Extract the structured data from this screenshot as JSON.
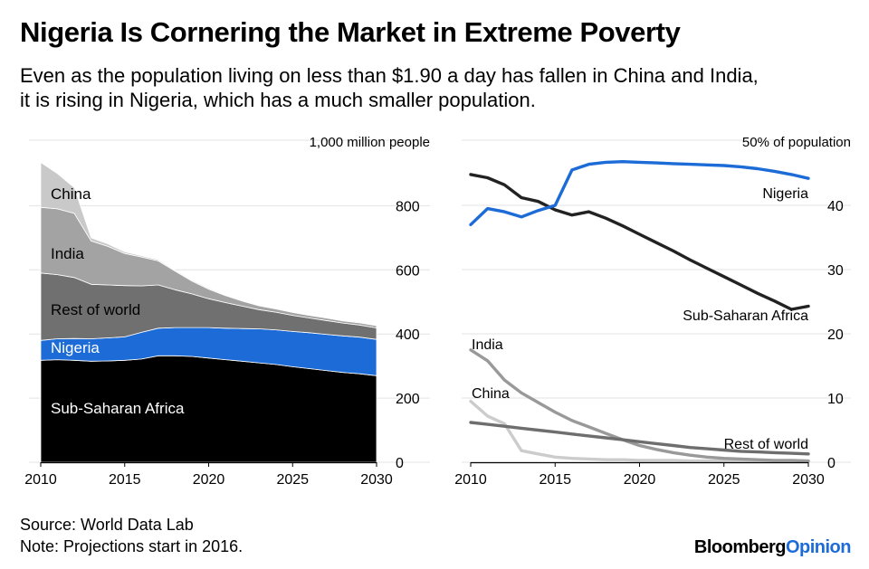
{
  "header": {
    "title": "Nigeria Is Cornering the Market in Extreme Poverty",
    "subtitle_line1": "Even as the population living on less than $1.90 a day has fallen in China and India,",
    "subtitle_line2": "it is rising in Nigeria, which has a much smaller population."
  },
  "footer": {
    "source": "Source: World Data Lab",
    "note": "Note: Projections start in 2016.",
    "brand_main": "Bloomberg",
    "brand_accent": "Opinion"
  },
  "colors": {
    "china": "#c9c9c9",
    "india": "#a3a3a3",
    "rest_of_world": "#707070",
    "nigeria": "#1c6bd7",
    "sub_saharan": "#000000",
    "nigeria_line": "#1c6bd7",
    "ssa_line": "#222222",
    "india_line": "#999999",
    "china_line": "#cccccc",
    "row_line": "#6e6e6e",
    "grid": "#e3e3e3"
  },
  "chart_data": [
    {
      "type": "area",
      "stacked": true,
      "unit_label": "1,000 million people",
      "x": [
        2010,
        2011,
        2012,
        2013,
        2014,
        2015,
        2016,
        2017,
        2018,
        2019,
        2020,
        2021,
        2022,
        2023,
        2024,
        2025,
        2026,
        2027,
        2028,
        2029,
        2030
      ],
      "xticks": [
        2010,
        2015,
        2020,
        2025,
        2030
      ],
      "yticks": [
        0,
        200,
        400,
        600,
        800
      ],
      "ytick_labels": [
        "0",
        "200",
        "400",
        "600",
        "800"
      ],
      "ylim": [
        0,
        960
      ],
      "series": [
        {
          "name": "Sub-Saharan Africa",
          "key": "ssa",
          "values": [
            318,
            320,
            318,
            315,
            316,
            318,
            322,
            332,
            332,
            330,
            325,
            320,
            315,
            310,
            305,
            298,
            292,
            286,
            280,
            276,
            270
          ]
        },
        {
          "name": "Nigeria",
          "key": "nigeria",
          "values": [
            62,
            65,
            68,
            70,
            72,
            73,
            83,
            86,
            88,
            90,
            95,
            98,
            102,
            106,
            108,
            110,
            112,
            113,
            114,
            114,
            113
          ]
        },
        {
          "name": "Rest of world",
          "key": "rest_of_world",
          "values": [
            210,
            200,
            190,
            170,
            165,
            160,
            145,
            135,
            118,
            105,
            90,
            80,
            70,
            60,
            55,
            50,
            46,
            43,
            40,
            38,
            36
          ]
        },
        {
          "name": "India",
          "key": "india",
          "values": [
            205,
            205,
            200,
            135,
            120,
            100,
            90,
            75,
            58,
            40,
            30,
            22,
            16,
            12,
            10,
            9,
            8,
            8,
            7,
            7,
            7
          ]
        },
        {
          "name": "China",
          "key": "china",
          "values": [
            140,
            110,
            80,
            10,
            8,
            5,
            4,
            4,
            3,
            3,
            3,
            2,
            2,
            2,
            2,
            2,
            2,
            2,
            2,
            2,
            2
          ]
        }
      ],
      "labels": {
        "china": "China",
        "india": "India",
        "rest_of_world": "Rest of world",
        "nigeria": "Nigeria",
        "ssa": "Sub-Saharan Africa"
      }
    },
    {
      "type": "line",
      "unit_label": "50% of population",
      "x": [
        2010,
        2011,
        2012,
        2013,
        2014,
        2015,
        2016,
        2017,
        2018,
        2019,
        2020,
        2021,
        2022,
        2023,
        2024,
        2025,
        2026,
        2027,
        2028,
        2029,
        2030
      ],
      "xticks": [
        2010,
        2015,
        2020,
        2025,
        2030
      ],
      "yticks": [
        0,
        10,
        20,
        30,
        40
      ],
      "ytick_labels": [
        "0",
        "10",
        "20",
        "30",
        "40"
      ],
      "ylim": [
        0,
        48
      ],
      "series": [
        {
          "name": "Nigeria",
          "key": "nigeria",
          "values": [
            37,
            39.5,
            39,
            38.2,
            39.2,
            40,
            45.5,
            46.4,
            46.7,
            46.8,
            46.7,
            46.6,
            46.5,
            46.4,
            46.3,
            46.2,
            46,
            45.7,
            45.3,
            44.8,
            44.2
          ]
        },
        {
          "name": "Sub-Saharan Africa",
          "key": "ssa",
          "values": [
            44.8,
            44.3,
            43.2,
            41.2,
            40.6,
            39.3,
            38.5,
            39,
            38,
            36.8,
            35.5,
            34.2,
            32.9,
            31.5,
            30.2,
            28.9,
            27.6,
            26.3,
            25.1,
            23.8,
            24.3
          ]
        },
        {
          "name": "India",
          "key": "india",
          "values": [
            17.5,
            15.8,
            12.8,
            10.8,
            9.3,
            7.8,
            6.5,
            5.5,
            4.5,
            3.5,
            2.6,
            2,
            1.5,
            1.1,
            0.8,
            0.6,
            0.5,
            0.4,
            0.3,
            0.3,
            0.2
          ]
        },
        {
          "name": "China",
          "key": "china",
          "values": [
            9.5,
            7.2,
            6,
            1.8,
            1.3,
            0.8,
            0.6,
            0.5,
            0.4,
            0.4,
            0.3,
            0.3,
            0.3,
            0.2,
            0.2,
            0.2,
            0.2,
            0.2,
            0.2,
            0.2,
            0.2
          ]
        },
        {
          "name": "Rest of world",
          "key": "rest_of_world",
          "values": [
            6.2,
            5.9,
            5.6,
            5.3,
            5,
            4.7,
            4.4,
            4.1,
            3.8,
            3.5,
            3.2,
            2.9,
            2.6,
            2.3,
            2.1,
            1.9,
            1.7,
            1.6,
            1.5,
            1.4,
            1.3
          ]
        }
      ],
      "labels": {
        "nigeria": "Nigeria",
        "ssa": "Sub-Saharan Africa",
        "india": "India",
        "china": "China",
        "rest_of_world": "Rest of world"
      }
    }
  ]
}
